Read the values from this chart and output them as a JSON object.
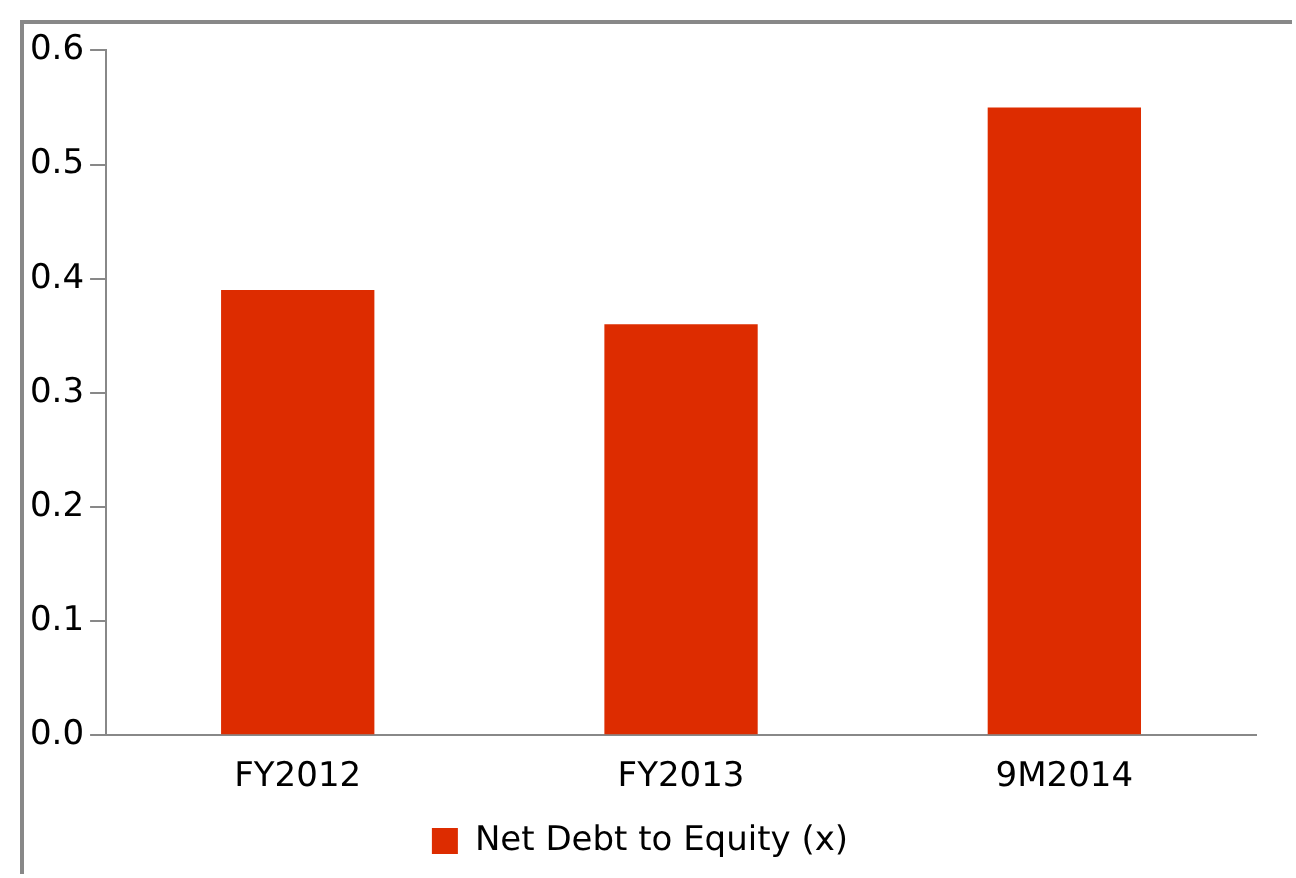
{
  "chart_data": {
    "type": "bar",
    "categories": [
      "FY2012",
      "FY2013",
      "9M2014"
    ],
    "series": [
      {
        "name": "Net Debt to Equity (x)",
        "color": "#dd2c00",
        "values": [
          0.39,
          0.36,
          0.55
        ]
      }
    ],
    "ylim": [
      0,
      0.6
    ],
    "yticks": [
      {
        "value": 0,
        "label": "0.0"
      },
      {
        "value": 0.1,
        "label": "0.1"
      },
      {
        "value": 0.2,
        "label": "0.2"
      },
      {
        "value": 0.3,
        "label": "0.3"
      },
      {
        "value": 0.4,
        "label": "0.4"
      },
      {
        "value": 0.5,
        "label": "0.5"
      },
      {
        "value": 0.6,
        "label": "0.6"
      }
    ],
    "grid": false,
    "legend": "bottom"
  }
}
